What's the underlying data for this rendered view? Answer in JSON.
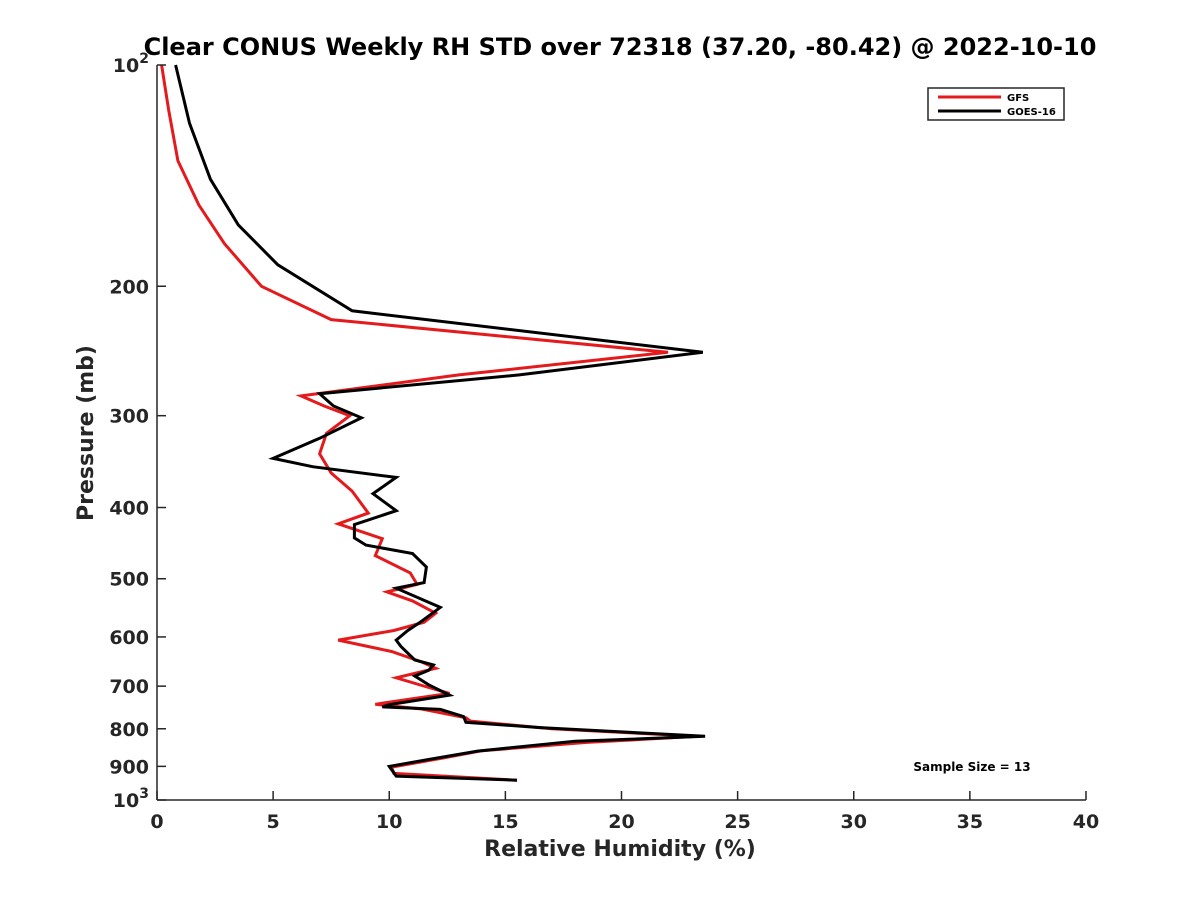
{
  "chart_data": {
    "type": "line",
    "title": "Clear CONUS Weekly RH STD over 72318 (37.20, -80.42) @ 2022-10-10",
    "xlabel": "Relative Humidity (%)",
    "ylabel": "Pressure (mb)",
    "xlim": [
      0,
      40
    ],
    "ylim": [
      100,
      1000
    ],
    "y_scale": "log",
    "y_reversed": true,
    "grid": false,
    "legend_position": "top-right",
    "x_ticks": [
      0,
      5,
      10,
      15,
      20,
      25,
      30,
      35,
      40
    ],
    "y_ticks": [
      100,
      200,
      300,
      400,
      500,
      600,
      700,
      800,
      900,
      1000
    ],
    "y_tick_labels": [
      {
        "base": "10",
        "exp": "2"
      },
      {
        "base": "200",
        "exp": ""
      },
      {
        "base": "300",
        "exp": ""
      },
      {
        "base": "400",
        "exp": ""
      },
      {
        "base": "500",
        "exp": ""
      },
      {
        "base": "600",
        "exp": ""
      },
      {
        "base": "700",
        "exp": ""
      },
      {
        "base": "800",
        "exp": ""
      },
      {
        "base": "900",
        "exp": ""
      },
      {
        "base": "10",
        "exp": "3"
      }
    ],
    "series": [
      {
        "name": "GFS",
        "color": "#e41a1c",
        "points": [
          [
            0.2,
            100
          ],
          [
            0.5,
            115
          ],
          [
            0.9,
            135
          ],
          [
            1.8,
            155
          ],
          [
            2.9,
            175
          ],
          [
            4.5,
            200
          ],
          [
            7.5,
            222
          ],
          [
            22.0,
            246
          ],
          [
            13.0,
            264
          ],
          [
            6.2,
            282
          ],
          [
            7.2,
            291
          ],
          [
            8.3,
            300
          ],
          [
            7.3,
            317
          ],
          [
            7.0,
            338
          ],
          [
            7.5,
            359
          ],
          [
            8.4,
            380
          ],
          [
            9.1,
            407
          ],
          [
            7.8,
            421
          ],
          [
            9.7,
            441
          ],
          [
            9.4,
            465
          ],
          [
            10.9,
            491
          ],
          [
            11.2,
            509
          ],
          [
            9.9,
            521
          ],
          [
            11.0,
            536
          ],
          [
            12.0,
            557
          ],
          [
            11.5,
            573
          ],
          [
            10.2,
            588
          ],
          [
            7.8,
            606
          ],
          [
            10.1,
            628
          ],
          [
            11.4,
            649
          ],
          [
            12.0,
            662
          ],
          [
            10.3,
            682
          ],
          [
            11.7,
            703
          ],
          [
            12.6,
            716
          ],
          [
            11.0,
            728
          ],
          [
            9.4,
            741
          ],
          [
            11.4,
            752
          ],
          [
            13.3,
            773
          ],
          [
            13.5,
            781
          ],
          [
            17.0,
            800
          ],
          [
            23.3,
            819
          ],
          [
            18.5,
            835
          ],
          [
            14.0,
            857
          ],
          [
            12.4,
            876
          ],
          [
            10.1,
            902
          ],
          [
            10.2,
            920
          ],
          [
            15.5,
            940
          ]
        ]
      },
      {
        "name": "GOES-16",
        "color": "#000000",
        "points": [
          [
            0.8,
            100
          ],
          [
            1.4,
            120
          ],
          [
            2.3,
            143
          ],
          [
            3.5,
            165
          ],
          [
            5.2,
            187
          ],
          [
            8.4,
            216
          ],
          [
            23.5,
            246
          ],
          [
            15.6,
            264
          ],
          [
            7.0,
            280
          ],
          [
            7.6,
            291
          ],
          [
            8.8,
            302
          ],
          [
            7.0,
            322
          ],
          [
            5.0,
            343
          ],
          [
            6.7,
            352
          ],
          [
            10.3,
            364
          ],
          [
            9.3,
            383
          ],
          [
            10.3,
            404
          ],
          [
            8.5,
            422
          ],
          [
            8.5,
            440
          ],
          [
            9.0,
            450
          ],
          [
            11.0,
            462
          ],
          [
            11.6,
            482
          ],
          [
            11.5,
            506
          ],
          [
            10.3,
            515
          ],
          [
            12.2,
            547
          ],
          [
            11.4,
            571
          ],
          [
            10.8,
            588
          ],
          [
            10.3,
            606
          ],
          [
            10.5,
            618
          ],
          [
            11.1,
            645
          ],
          [
            11.9,
            655
          ],
          [
            11.7,
            666
          ],
          [
            11.1,
            678
          ],
          [
            11.7,
            697
          ],
          [
            12.6,
            720
          ],
          [
            10.0,
            742
          ],
          [
            9.7,
            747
          ],
          [
            12.2,
            753
          ],
          [
            13.2,
            770
          ],
          [
            13.3,
            784
          ],
          [
            16.5,
            797
          ],
          [
            23.6,
            819
          ],
          [
            18.0,
            832
          ],
          [
            13.8,
            858
          ],
          [
            11.6,
            882
          ],
          [
            10.0,
            900
          ],
          [
            10.3,
            928
          ],
          [
            15.5,
            940
          ]
        ]
      }
    ],
    "legend": {
      "entries": [
        {
          "name": "GFS",
          "color": "#e41a1c"
        },
        {
          "name": "GOES-16",
          "color": "#000000"
        }
      ]
    },
    "annotation": "Sample Size = 13"
  }
}
